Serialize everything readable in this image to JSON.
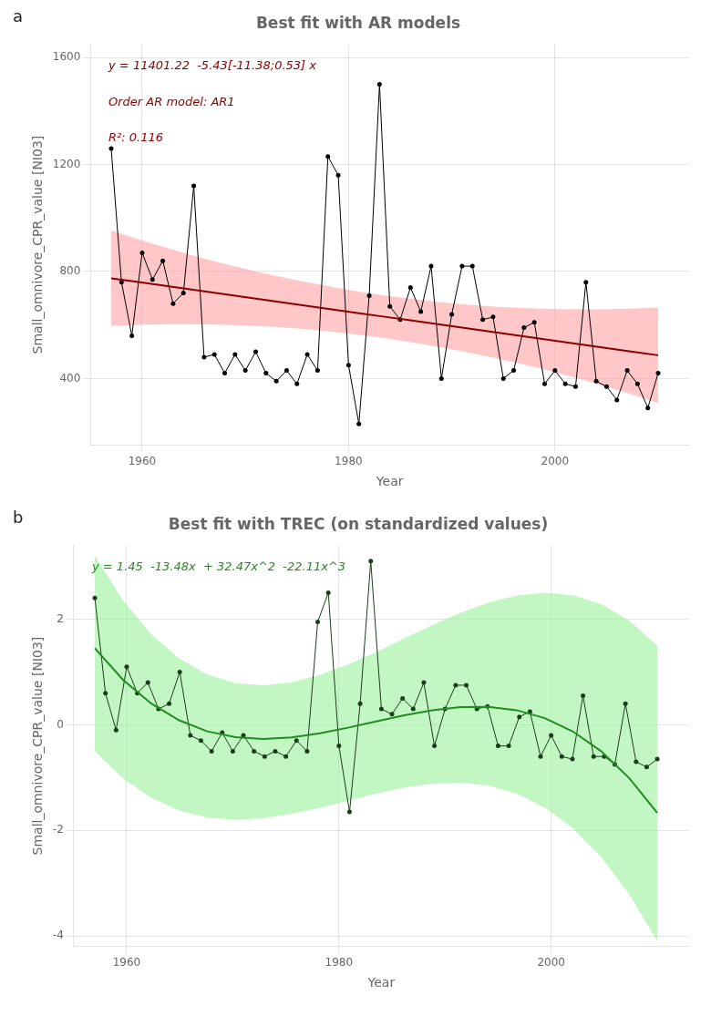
{
  "chart_data": [
    {
      "type": "line",
      "panel_label": "a",
      "title": "Best fit with AR models",
      "x_label": "Year",
      "y_label": "Small_omnivore_CPR_value [NI03]",
      "x": [
        1957,
        1958,
        1959,
        1960,
        1961,
        1962,
        1963,
        1964,
        1965,
        1966,
        1967,
        1968,
        1969,
        1970,
        1971,
        1972,
        1973,
        1974,
        1975,
        1976,
        1977,
        1978,
        1979,
        1980,
        1981,
        1982,
        1983,
        1984,
        1985,
        1986,
        1987,
        1988,
        1989,
        1990,
        1991,
        1992,
        1993,
        1994,
        1995,
        1996,
        1997,
        1998,
        1999,
        2000,
        2001,
        2002,
        2003,
        2004,
        2005,
        2006,
        2007,
        2008,
        2009,
        2010
      ],
      "xlim": [
        1955,
        2013
      ],
      "xticks": [
        1960,
        1980,
        2000
      ],
      "ylim": [
        150,
        1650
      ],
      "yticks": [
        400,
        800,
        1200,
        1600
      ],
      "grid": true,
      "annotations": [
        {
          "text": "y = 11401.22  -5.43[-11.38;0.53] x",
          "color": "#8B0000"
        },
        {
          "text": "Order AR model: AR1",
          "color": "#8B0000"
        },
        {
          "text": "R²: 0.116",
          "color": "#8B0000"
        }
      ],
      "series": [
        {
          "type": "band",
          "color": "#FF9999",
          "x": [
            1957,
            1959.65,
            1962.3,
            1964.95,
            1967.6,
            1970.25,
            1972.9,
            1975.55,
            1978.2,
            1980.85,
            1983.5,
            1986.15,
            1988.8,
            1991.45,
            1994.1,
            1996.75,
            1999.4,
            2002.05,
            2004.7,
            2007.35,
            2010
          ],
          "lower": [
            596.395,
            600.68535,
            603.0094,
            603.36715,
            601.7586,
            598.18375,
            592.6426,
            585.13515,
            575.6614,
            564.22135,
            550.815,
            535.44235,
            518.1034,
            498.79815,
            477.5266,
            454.28875,
            429.0846,
            401.91415,
            372.7774,
            341.67435,
            308.605
          ],
          "upper": [
            953.025,
            919.95565,
            888.8526,
            859.71585,
            832.5454,
            807.34125,
            784.1034,
            762.83185,
            743.5266,
            726.18765,
            710.815,
            697.40865,
            685.9686,
            676.49485,
            668.9874,
            663.44625,
            659.8714,
            658.26285,
            658.6206,
            660.94465,
            665.235
          ]
        },
        {
          "type": "line",
          "color": "black",
          "marker": "o",
          "values": [
            1260,
            760,
            560,
            870,
            770,
            840,
            680,
            720,
            1120,
            480,
            490,
            420,
            490,
            430,
            500,
            420,
            390,
            430,
            380,
            490,
            430,
            1230,
            1160,
            450,
            230,
            710,
            1500,
            670,
            620,
            740,
            650,
            820,
            400,
            640,
            820,
            820,
            620,
            630,
            400,
            430,
            590,
            610,
            380,
            430,
            380,
            370,
            760,
            390,
            370,
            320,
            430,
            380,
            290,
            420
          ]
        },
        {
          "type": "line",
          "color": "#8B0000",
          "x": [
            1957,
            1959.65,
            1962.3,
            1964.95,
            1967.6,
            1970.25,
            1972.9,
            1975.55,
            1978.2,
            1980.85,
            1983.5,
            1986.15,
            1988.8,
            1991.45,
            1994.1,
            1996.75,
            1999.4,
            2002.05,
            2004.7,
            2007.35,
            2010
          ],
          "values": [
            774.71,
            760.3205,
            745.931,
            731.5415,
            717.152,
            702.7625,
            688.373,
            673.9835,
            659.594,
            645.2045,
            630.815,
            616.4255,
            602.036,
            587.6465,
            573.257,
            558.8675,
            544.478,
            530.0885,
            515.699,
            501.3095,
            486.92
          ]
        }
      ]
    },
    {
      "type": "line",
      "panel_label": "b",
      "title": "Best fit with TREC (on standardized values)",
      "x_label": "Year",
      "y_label": "Small_omnivore_CPR_value [NI03]",
      "x": [
        1957,
        1958,
        1959,
        1960,
        1961,
        1962,
        1963,
        1964,
        1965,
        1966,
        1967,
        1968,
        1969,
        1970,
        1971,
        1972,
        1973,
        1974,
        1975,
        1976,
        1977,
        1978,
        1979,
        1980,
        1981,
        1982,
        1983,
        1984,
        1985,
        1986,
        1987,
        1988,
        1989,
        1990,
        1991,
        1992,
        1993,
        1994,
        1995,
        1996,
        1997,
        1998,
        1999,
        2000,
        2001,
        2002,
        2003,
        2004,
        2005,
        2006,
        2007,
        2008,
        2009,
        2010
      ],
      "xlim": [
        1955,
        2013
      ],
      "xticks": [
        1960,
        1980,
        2000
      ],
      "ylim": [
        -4.2,
        3.4
      ],
      "yticks": [
        -4,
        -2,
        0,
        2
      ],
      "grid": true,
      "annotations": [
        {
          "text": "y = 1.45  -13.48x  + 32.47x^2  -22.11x^3",
          "color": "#228B22"
        }
      ],
      "series": [
        {
          "type": "band",
          "color": "#90EE90",
          "x": [
            1957,
            1959.65,
            1962.3,
            1964.95,
            1967.6,
            1970.25,
            1972.9,
            1975.55,
            1978.2,
            1980.85,
            1983.5,
            1986.15,
            1988.8,
            1991.45,
            1994.1,
            1996.75,
            1999.4,
            2002.05,
            2004.7,
            2007.35,
            2010
          ],
          "lower": [
            -0.5,
            -1.0141,
            -1.3829,
            -1.6247,
            -1.7578,
            -1.8008,
            -1.7718,
            -1.6893,
            -1.5716,
            -1.4371,
            -1.3042,
            -1.1912,
            -1.1165,
            -1.0984,
            -1.1553,
            -1.3056,
            -1.5675,
            -1.9596,
            -2.5002,
            -3.2075,
            -4.1
          ],
          "upper": [
            3.2,
            2.3576,
            1.7154,
            1.2534,
            0.9515,
            0.7895,
            0.7475,
            0.8052,
            0.9427,
            1.1398,
            1.3765,
            1.6327,
            1.8882,
            2.123,
            2.3171,
            2.4502,
            2.5024,
            2.4536,
            2.2837,
            1.9725,
            1.5
          ]
        },
        {
          "type": "line",
          "color": "#1a3d1a",
          "marker": "o",
          "values": [
            2.4,
            0.6,
            -0.1,
            1.1,
            0.6,
            0.8,
            0.3,
            0.4,
            1.0,
            -0.2,
            -0.3,
            -0.5,
            -0.15,
            -0.5,
            -0.2,
            -0.5,
            -0.6,
            -0.5,
            -0.6,
            -0.3,
            -0.5,
            1.95,
            2.5,
            -0.4,
            -1.65,
            0.4,
            3.1,
            0.3,
            0.2,
            0.5,
            0.3,
            0.8,
            -0.4,
            0.3,
            0.75,
            0.75,
            0.3,
            0.35,
            -0.4,
            -0.4,
            0.15,
            0.25,
            -0.6,
            -0.2,
            -0.6,
            -0.65,
            0.55,
            -0.6,
            -0.6,
            -0.75,
            0.4,
            -0.7,
            -0.8,
            -0.65
          ]
        },
        {
          "type": "line",
          "color": "#228B22",
          "x": [
            1957,
            1959.65,
            1962.3,
            1964.95,
            1967.6,
            1970.25,
            1972.9,
            1975.55,
            1978.2,
            1980.85,
            1983.5,
            1986.15,
            1988.8,
            1991.45,
            1994.1,
            1996.75,
            1999.4,
            2002.05,
            2004.7,
            2007.35,
            2010
          ],
          "values": [
            1.45,
            0.85441125,
            0.40459,
            0.08395375,
            -0.12408,
            -0.23609375,
            -0.26867,
            -0.23839125,
            -0.16184,
            -0.05559875,
            0.06375,
            0.17962375,
            0.27544,
            0.33461625,
            0.34057,
            0.27671875,
            0.12648,
            -0.12672875,
            -0.49949,
            -1.00838625,
            -1.67
          ]
        }
      ]
    }
  ]
}
